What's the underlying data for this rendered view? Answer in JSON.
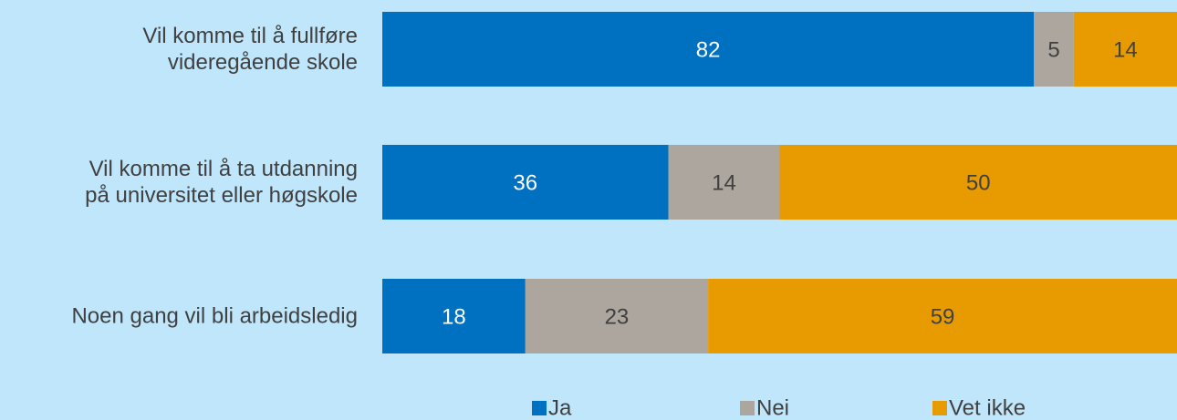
{
  "chart_data": {
    "type": "stacked-barh",
    "categories": [
      "Vil komme til å fullføre\nvideregående skole",
      "Vil komme til å ta utdanning\npå universitet eller høgskole",
      "Noen gang vil bli arbeidsledig"
    ],
    "series": [
      {
        "name": "Ja",
        "color": "#0070c0",
        "values": [
          82,
          36,
          18
        ]
      },
      {
        "name": "Nei",
        "color": "#aca69f",
        "values": [
          5,
          14,
          23
        ]
      },
      {
        "name": "Vet ikke",
        "color": "#e89b00",
        "values": [
          14,
          50,
          59
        ]
      }
    ],
    "xlim": [
      0,
      100
    ],
    "background": "#bfe6fb"
  }
}
